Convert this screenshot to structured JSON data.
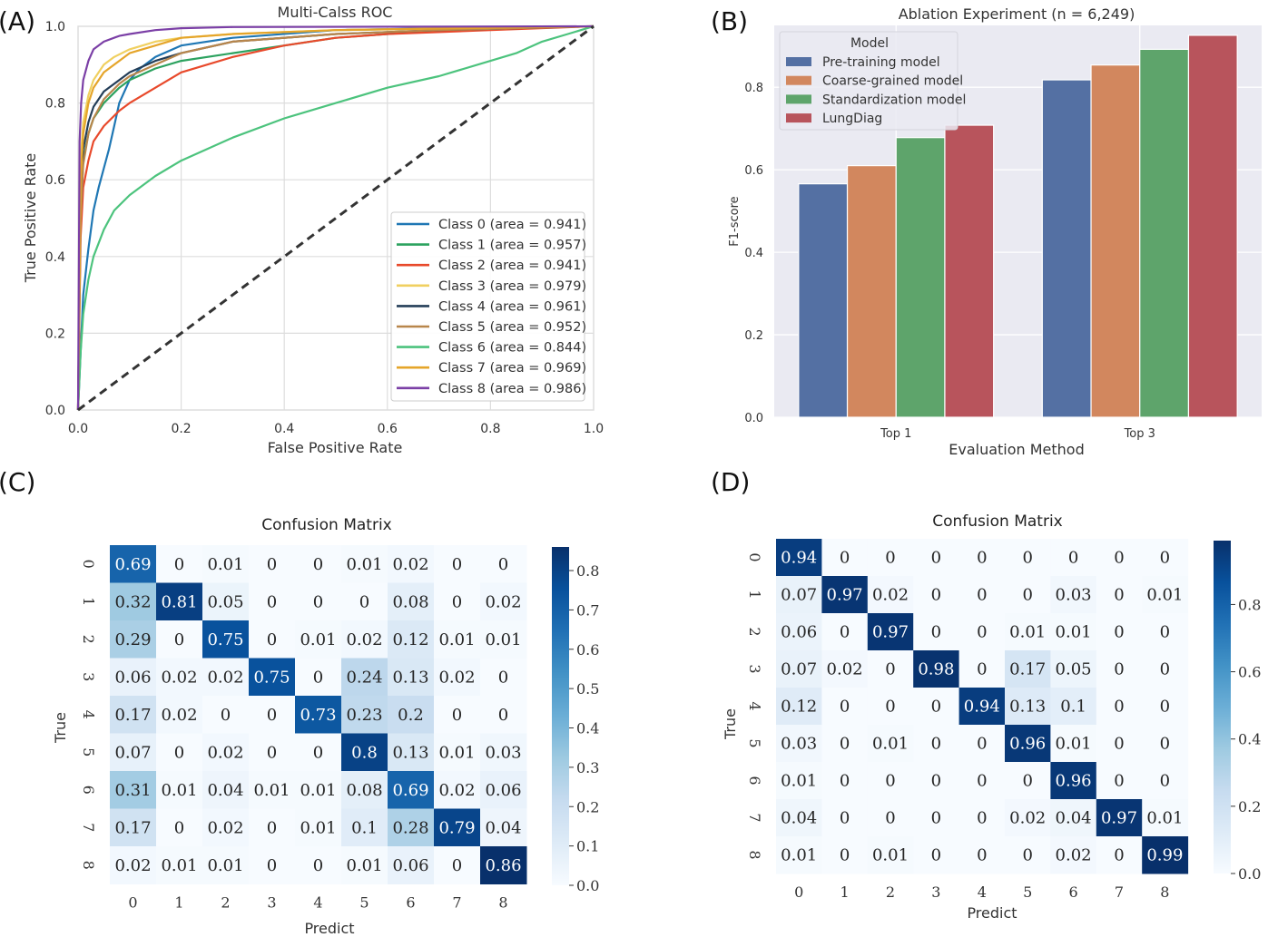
{
  "panels": {
    "a": "(A)",
    "b": "(B)",
    "c": "(C)",
    "d": "(D)"
  },
  "chart_data": [
    {
      "panel": "(A)",
      "type": "line",
      "title": "Multi-Calss ROC",
      "xlabel": "False Positive Rate",
      "ylabel": "True Positive Rate",
      "xlim": [
        0,
        1
      ],
      "ylim": [
        0,
        1
      ],
      "xticks": [
        "0.0",
        "0.2",
        "0.4",
        "0.6",
        "0.8",
        "1.0"
      ],
      "yticks": [
        "0.0",
        "0.2",
        "0.4",
        "0.6",
        "0.8",
        "1.0"
      ],
      "grid": true,
      "legend": "lower-right",
      "series": [
        {
          "name": "Class 0 (area = 0.941)",
          "color": "#1f77b4",
          "x": [
            0,
            0.005,
            0.01,
            0.02,
            0.03,
            0.04,
            0.05,
            0.06,
            0.07,
            0.08,
            0.1,
            0.12,
            0.15,
            0.2,
            0.3,
            0.5,
            0.7,
            1.0
          ],
          "y": [
            0,
            0.15,
            0.3,
            0.42,
            0.52,
            0.58,
            0.63,
            0.68,
            0.74,
            0.8,
            0.86,
            0.89,
            0.92,
            0.95,
            0.97,
            0.99,
            0.995,
            1.0
          ]
        },
        {
          "name": "Class 1 (area = 0.957)",
          "color": "#2ca25f",
          "x": [
            0,
            0.005,
            0.01,
            0.02,
            0.03,
            0.05,
            0.08,
            0.1,
            0.15,
            0.2,
            0.3,
            0.4,
            0.5,
            0.6,
            0.7,
            1.0
          ],
          "y": [
            0,
            0.5,
            0.65,
            0.72,
            0.76,
            0.8,
            0.84,
            0.86,
            0.89,
            0.91,
            0.93,
            0.95,
            0.97,
            0.98,
            0.99,
            1.0
          ]
        },
        {
          "name": "Class 2 (area = 0.941)",
          "color": "#e8492b",
          "x": [
            0,
            0.005,
            0.01,
            0.02,
            0.03,
            0.05,
            0.08,
            0.1,
            0.15,
            0.2,
            0.3,
            0.4,
            0.5,
            0.6,
            0.8,
            1.0
          ],
          "y": [
            0,
            0.45,
            0.58,
            0.65,
            0.7,
            0.74,
            0.78,
            0.8,
            0.84,
            0.88,
            0.92,
            0.95,
            0.97,
            0.98,
            0.99,
            1.0
          ]
        },
        {
          "name": "Class 3 (area = 0.979)",
          "color": "#f0d060",
          "x": [
            0,
            0.005,
            0.01,
            0.02,
            0.03,
            0.05,
            0.07,
            0.1,
            0.15,
            0.2,
            0.3,
            0.5,
            1.0
          ],
          "y": [
            0,
            0.65,
            0.75,
            0.82,
            0.86,
            0.9,
            0.92,
            0.94,
            0.96,
            0.97,
            0.98,
            0.99,
            1.0
          ]
        },
        {
          "name": "Class 4 (area = 0.961)",
          "color": "#243e58",
          "x": [
            0,
            0.005,
            0.01,
            0.02,
            0.03,
            0.05,
            0.08,
            0.1,
            0.15,
            0.2,
            0.3,
            0.5,
            0.7,
            1.0
          ],
          "y": [
            0,
            0.55,
            0.68,
            0.75,
            0.79,
            0.83,
            0.86,
            0.88,
            0.91,
            0.93,
            0.96,
            0.98,
            0.99,
            1.0
          ]
        },
        {
          "name": "Class 5 (area = 0.952)",
          "color": "#b8864b",
          "x": [
            0,
            0.005,
            0.01,
            0.02,
            0.03,
            0.05,
            0.08,
            0.1,
            0.15,
            0.2,
            0.3,
            0.5,
            0.7,
            1.0
          ],
          "y": [
            0,
            0.5,
            0.64,
            0.72,
            0.76,
            0.81,
            0.85,
            0.87,
            0.9,
            0.93,
            0.96,
            0.98,
            0.99,
            1.0
          ]
        },
        {
          "name": "Class 6 (area = 0.844)",
          "color": "#4cc37d",
          "x": [
            0,
            0.005,
            0.01,
            0.02,
            0.03,
            0.05,
            0.07,
            0.1,
            0.15,
            0.2,
            0.3,
            0.4,
            0.5,
            0.6,
            0.7,
            0.8,
            0.85,
            0.9,
            0.95,
            1.0
          ],
          "y": [
            0,
            0.15,
            0.25,
            0.34,
            0.4,
            0.47,
            0.52,
            0.56,
            0.61,
            0.65,
            0.71,
            0.76,
            0.8,
            0.84,
            0.87,
            0.91,
            0.93,
            0.96,
            0.98,
            1.0
          ]
        },
        {
          "name": "Class 7 (area = 0.969)",
          "color": "#e5a52a",
          "x": [
            0,
            0.005,
            0.01,
            0.02,
            0.03,
            0.05,
            0.08,
            0.1,
            0.15,
            0.2,
            0.3,
            0.5,
            1.0
          ],
          "y": [
            0,
            0.6,
            0.72,
            0.8,
            0.84,
            0.88,
            0.91,
            0.93,
            0.95,
            0.97,
            0.98,
            0.99,
            1.0
          ]
        },
        {
          "name": "Class 8 (area = 0.986)",
          "color": "#7b3fa6",
          "x": [
            0,
            0.003,
            0.006,
            0.01,
            0.02,
            0.03,
            0.05,
            0.08,
            0.1,
            0.15,
            0.2,
            0.3,
            1.0
          ],
          "y": [
            0,
            0.7,
            0.8,
            0.86,
            0.91,
            0.94,
            0.96,
            0.975,
            0.98,
            0.99,
            0.995,
            0.998,
            1.0
          ]
        }
      ],
      "diagonal": {
        "x": [
          0,
          1
        ],
        "y": [
          0,
          1
        ],
        "style": "dashed",
        "color": "#333333"
      }
    },
    {
      "panel": "(B)",
      "type": "bar",
      "title": "Ablation Experiment (n = 6,249)",
      "xlabel": "Evaluation Method",
      "ylabel": "F1-score",
      "ylim": [
        0,
        0.95
      ],
      "yticks": [
        "0.0",
        "0.2",
        "0.4",
        "0.6",
        "0.8"
      ],
      "categories": [
        "Top 1",
        "Top 3"
      ],
      "legend_title": "Model",
      "legend": "top-left",
      "series": [
        {
          "name": "Pre-training model",
          "color": "#5470a3",
          "values": [
            0.566,
            0.818
          ]
        },
        {
          "name": "Coarse-grained model",
          "color": "#d2875e",
          "values": [
            0.61,
            0.854
          ]
        },
        {
          "name": "Standardization model",
          "color": "#5ea46b",
          "values": [
            0.678,
            0.892
          ]
        },
        {
          "name": "LungDiag",
          "color": "#b8545c",
          "values": [
            0.708,
            0.926
          ]
        }
      ]
    },
    {
      "panel": "(C)",
      "type": "heatmap",
      "title": "Confusion Matrix",
      "xlabel": "Predict",
      "ylabel": "True",
      "x": [
        "0",
        "1",
        "2",
        "3",
        "4",
        "5",
        "6",
        "7",
        "8"
      ],
      "y": [
        "0",
        "1",
        "2",
        "3",
        "4",
        "5",
        "6",
        "7",
        "8"
      ],
      "colorbar_ticks": [
        "0.0",
        "0.1",
        "0.2",
        "0.3",
        "0.4",
        "0.5",
        "0.6",
        "0.7",
        "0.8"
      ],
      "vmax": 0.86,
      "values": [
        [
          "0.69",
          "0",
          "0.01",
          "0",
          "0",
          "0.01",
          "0.02",
          "0",
          "0"
        ],
        [
          "0.32",
          "0.81",
          "0.05",
          "0",
          "0",
          "0",
          "0.08",
          "0",
          "0.02"
        ],
        [
          "0.29",
          "0",
          "0.75",
          "0",
          "0.01",
          "0.02",
          "0.12",
          "0.01",
          "0.01"
        ],
        [
          "0.06",
          "0.02",
          "0.02",
          "0.75",
          "0",
          "0.24",
          "0.13",
          "0.02",
          "0"
        ],
        [
          "0.17",
          "0.02",
          "0",
          "0",
          "0.73",
          "0.23",
          "0.2",
          "0",
          "0"
        ],
        [
          "0.07",
          "0",
          "0.02",
          "0",
          "0",
          "0.8",
          "0.13",
          "0.01",
          "0.03"
        ],
        [
          "0.31",
          "0.01",
          "0.04",
          "0.01",
          "0.01",
          "0.08",
          "0.69",
          "0.02",
          "0.06"
        ],
        [
          "0.17",
          "0",
          "0.02",
          "0",
          "0.01",
          "0.1",
          "0.28",
          "0.79",
          "0.04"
        ],
        [
          "0.02",
          "0.01",
          "0.01",
          "0",
          "0",
          "0.01",
          "0.06",
          "0",
          "0.86"
        ]
      ]
    },
    {
      "panel": "(D)",
      "type": "heatmap",
      "title": "Confusion Matrix",
      "xlabel": "Predict",
      "ylabel": "True",
      "x": [
        "0",
        "1",
        "2",
        "3",
        "4",
        "5",
        "6",
        "7",
        "8"
      ],
      "y": [
        "0",
        "1",
        "2",
        "3",
        "4",
        "5",
        "6",
        "7",
        "8"
      ],
      "colorbar_ticks": [
        "0.0",
        "0.2",
        "0.4",
        "0.6",
        "0.8"
      ],
      "vmax": 0.99,
      "values": [
        [
          "0.94",
          "0",
          "0",
          "0",
          "0",
          "0",
          "0",
          "0",
          "0"
        ],
        [
          "0.07",
          "0.97",
          "0.02",
          "0",
          "0",
          "0",
          "0.03",
          "0",
          "0.01"
        ],
        [
          "0.06",
          "0",
          "0.97",
          "0",
          "0",
          "0.01",
          "0.01",
          "0",
          "0"
        ],
        [
          "0.07",
          "0.02",
          "0",
          "0.98",
          "0",
          "0.17",
          "0.05",
          "0",
          "0"
        ],
        [
          "0.12",
          "0",
          "0",
          "0",
          "0.94",
          "0.13",
          "0.1",
          "0",
          "0"
        ],
        [
          "0.03",
          "0",
          "0.01",
          "0",
          "0",
          "0.96",
          "0.01",
          "0",
          "0"
        ],
        [
          "0.01",
          "0",
          "0",
          "0",
          "0",
          "0",
          "0.96",
          "0",
          "0"
        ],
        [
          "0.04",
          "0",
          "0",
          "0",
          "0",
          "0.02",
          "0.04",
          "0.97",
          "0.01"
        ],
        [
          "0.01",
          "0",
          "0.01",
          "0",
          "0",
          "0",
          "0.02",
          "0",
          "0.99"
        ]
      ]
    }
  ]
}
